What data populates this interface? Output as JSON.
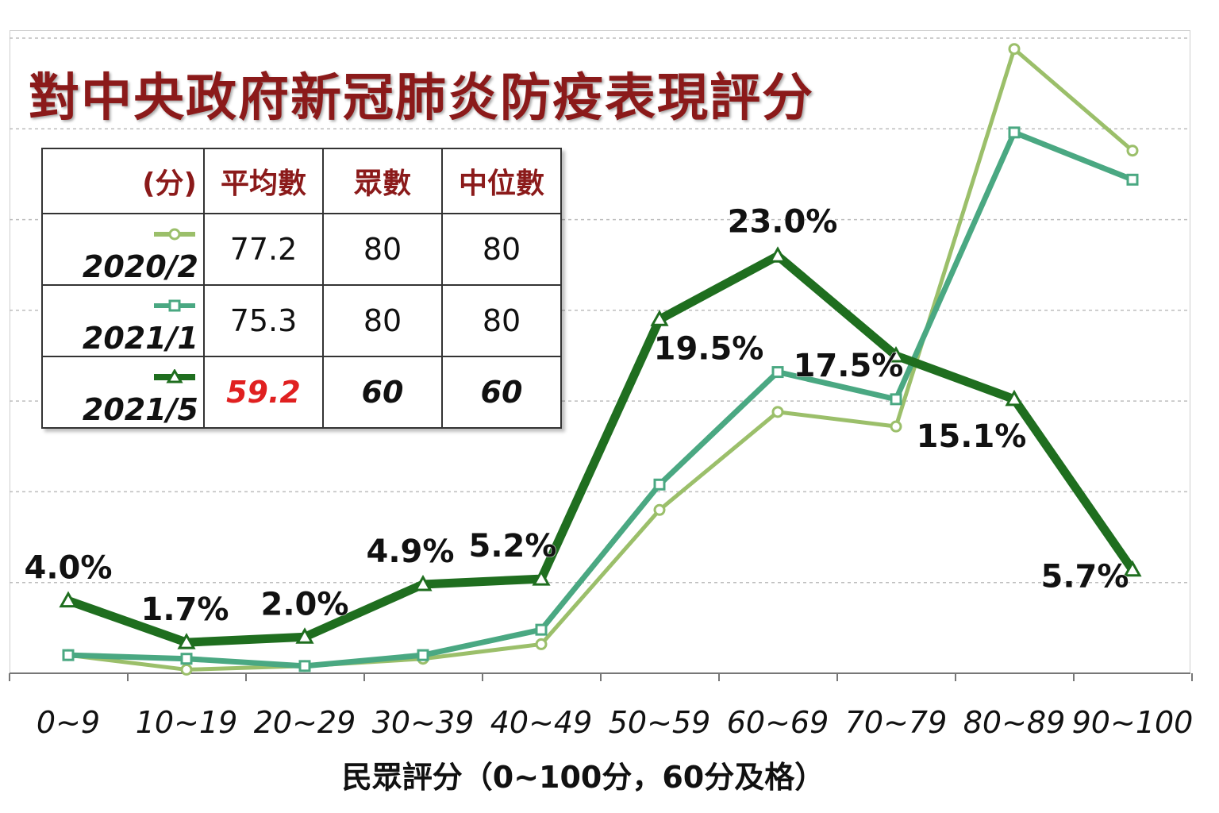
{
  "title": "對中央政府新冠肺炎防疫表現評分",
  "colors": {
    "title": "#8b1a1a",
    "s2020_2": "#9bbf6a",
    "s2021_1": "#4aa882",
    "s2021_5": "#1f6e1f",
    "highlight": "#e02020"
  },
  "table": {
    "unit": "(分)",
    "headers": [
      "平均數",
      "眾數",
      "中位數"
    ],
    "rows": [
      {
        "series": "2020/2",
        "mean": "77.2",
        "mode": "80",
        "median": "80"
      },
      {
        "series": "2021/1",
        "mean": "75.3",
        "mode": "80",
        "median": "80"
      },
      {
        "series": "2021/5",
        "mean": "59.2",
        "mode": "60",
        "median": "60"
      }
    ]
  },
  "chart_data": {
    "type": "line",
    "xlabel": "民眾評分（0~100分，60分及格）",
    "ylabel": "",
    "ylim": [
      0,
      35
    ],
    "grid": true,
    "categories": [
      "0~9",
      "10~19",
      "20~29",
      "30~39",
      "40~49",
      "50~59",
      "60~69",
      "70~79",
      "80~89",
      "90~100"
    ],
    "series": [
      {
        "name": "2020/2",
        "marker": "circle",
        "color": "#9bbf6a",
        "values": [
          1.0,
          0.2,
          0.4,
          0.8,
          1.6,
          9.0,
          14.4,
          13.6,
          34.4,
          28.8
        ]
      },
      {
        "name": "2021/1",
        "marker": "square",
        "color": "#4aa882",
        "values": [
          1.0,
          0.8,
          0.4,
          1.0,
          2.4,
          10.4,
          16.6,
          15.1,
          29.8,
          27.2
        ]
      },
      {
        "name": "2021/5",
        "marker": "triangle",
        "color": "#1f6e1f",
        "values": [
          4.0,
          1.7,
          2.0,
          4.9,
          5.2,
          19.5,
          23.0,
          17.5,
          15.1,
          5.7
        ],
        "labels": [
          "4.0%",
          "1.7%",
          "2.0%",
          "4.9%",
          "5.2%",
          "19.5%",
          "23.0%",
          "17.5%",
          "15.1%",
          "5.7%"
        ]
      }
    ]
  }
}
